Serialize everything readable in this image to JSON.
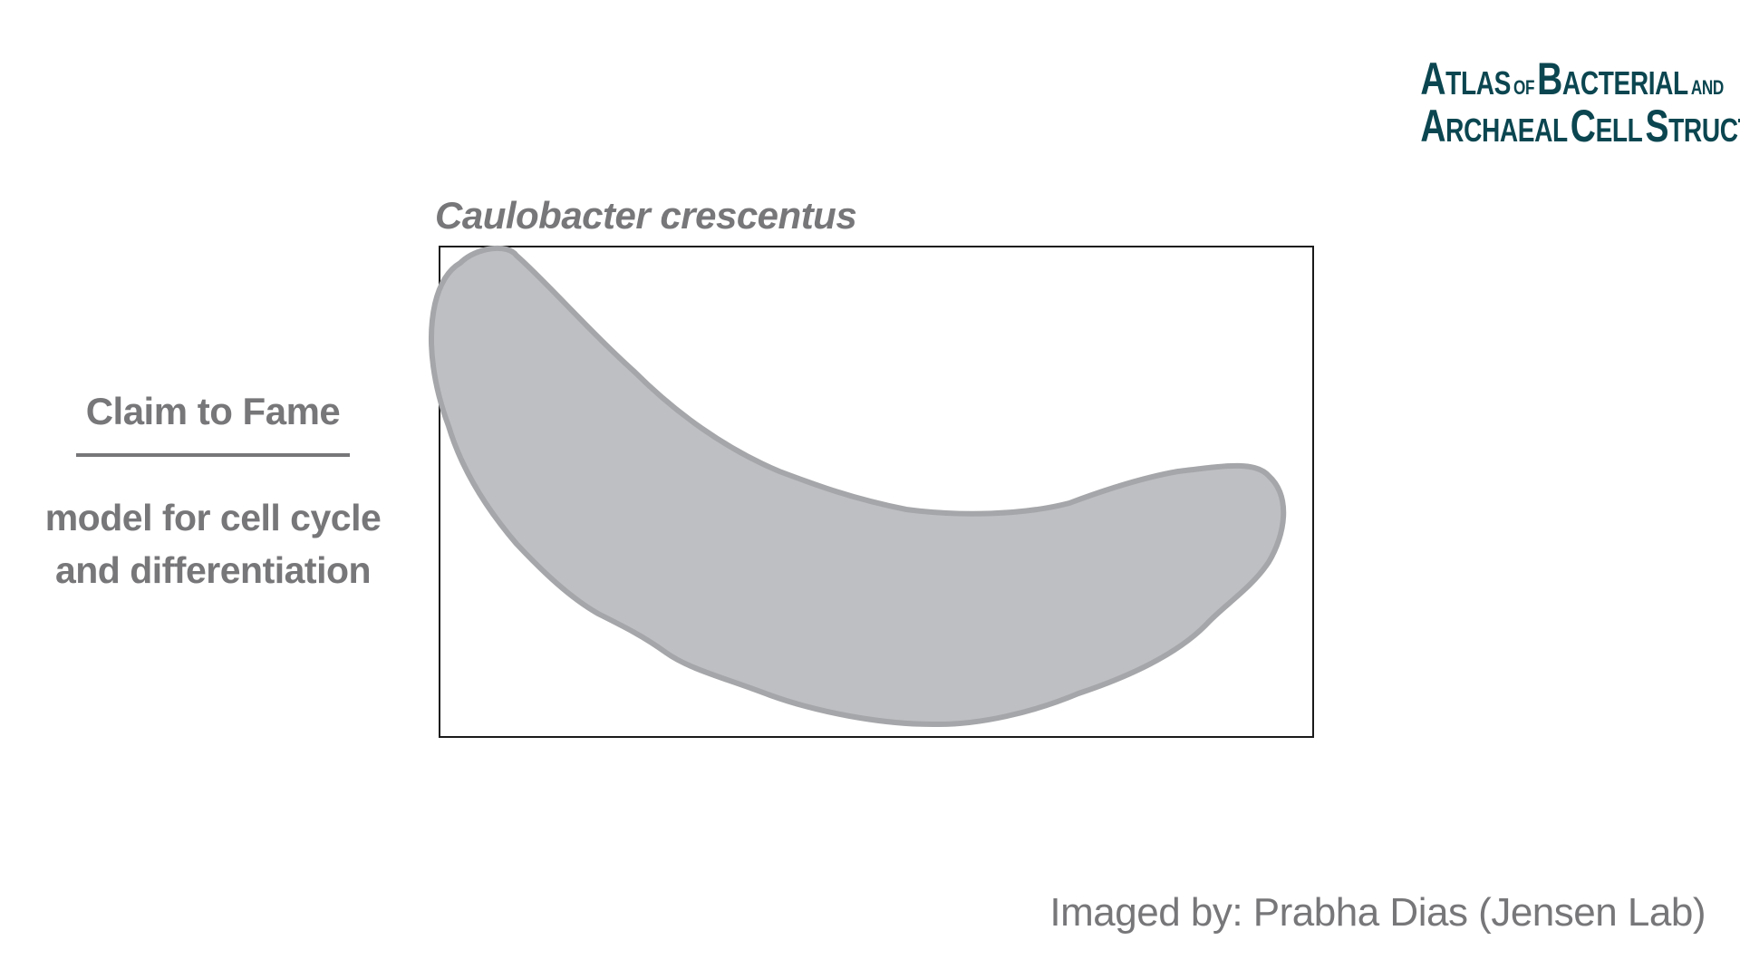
{
  "logo": {
    "line1_a": "A",
    "line1_b": "TLAS",
    "line1_c": "OF",
    "line1_d": "B",
    "line1_e": "ACTERIAL",
    "line1_f": "AND",
    "line2_a": "A",
    "line2_b": "RCHAEAL",
    "line2_c": "C",
    "line2_d": "ELL",
    "line2_e": "S",
    "line2_f": "TRUCTURE"
  },
  "species_name": "Caulobacter crescentus",
  "claim": {
    "heading": "Claim to Fame",
    "text_line1": "model for cell cycle",
    "text_line2": "and differentiation"
  },
  "credit": "Imaged by: Prabha Dias (Jensen Lab)",
  "colors": {
    "logo": "#0b4650",
    "text_gray": "#77777a",
    "cell_fill": "#bebfc2",
    "cell_stroke": "#a5a6a9",
    "frame": "#1a1a1a"
  }
}
